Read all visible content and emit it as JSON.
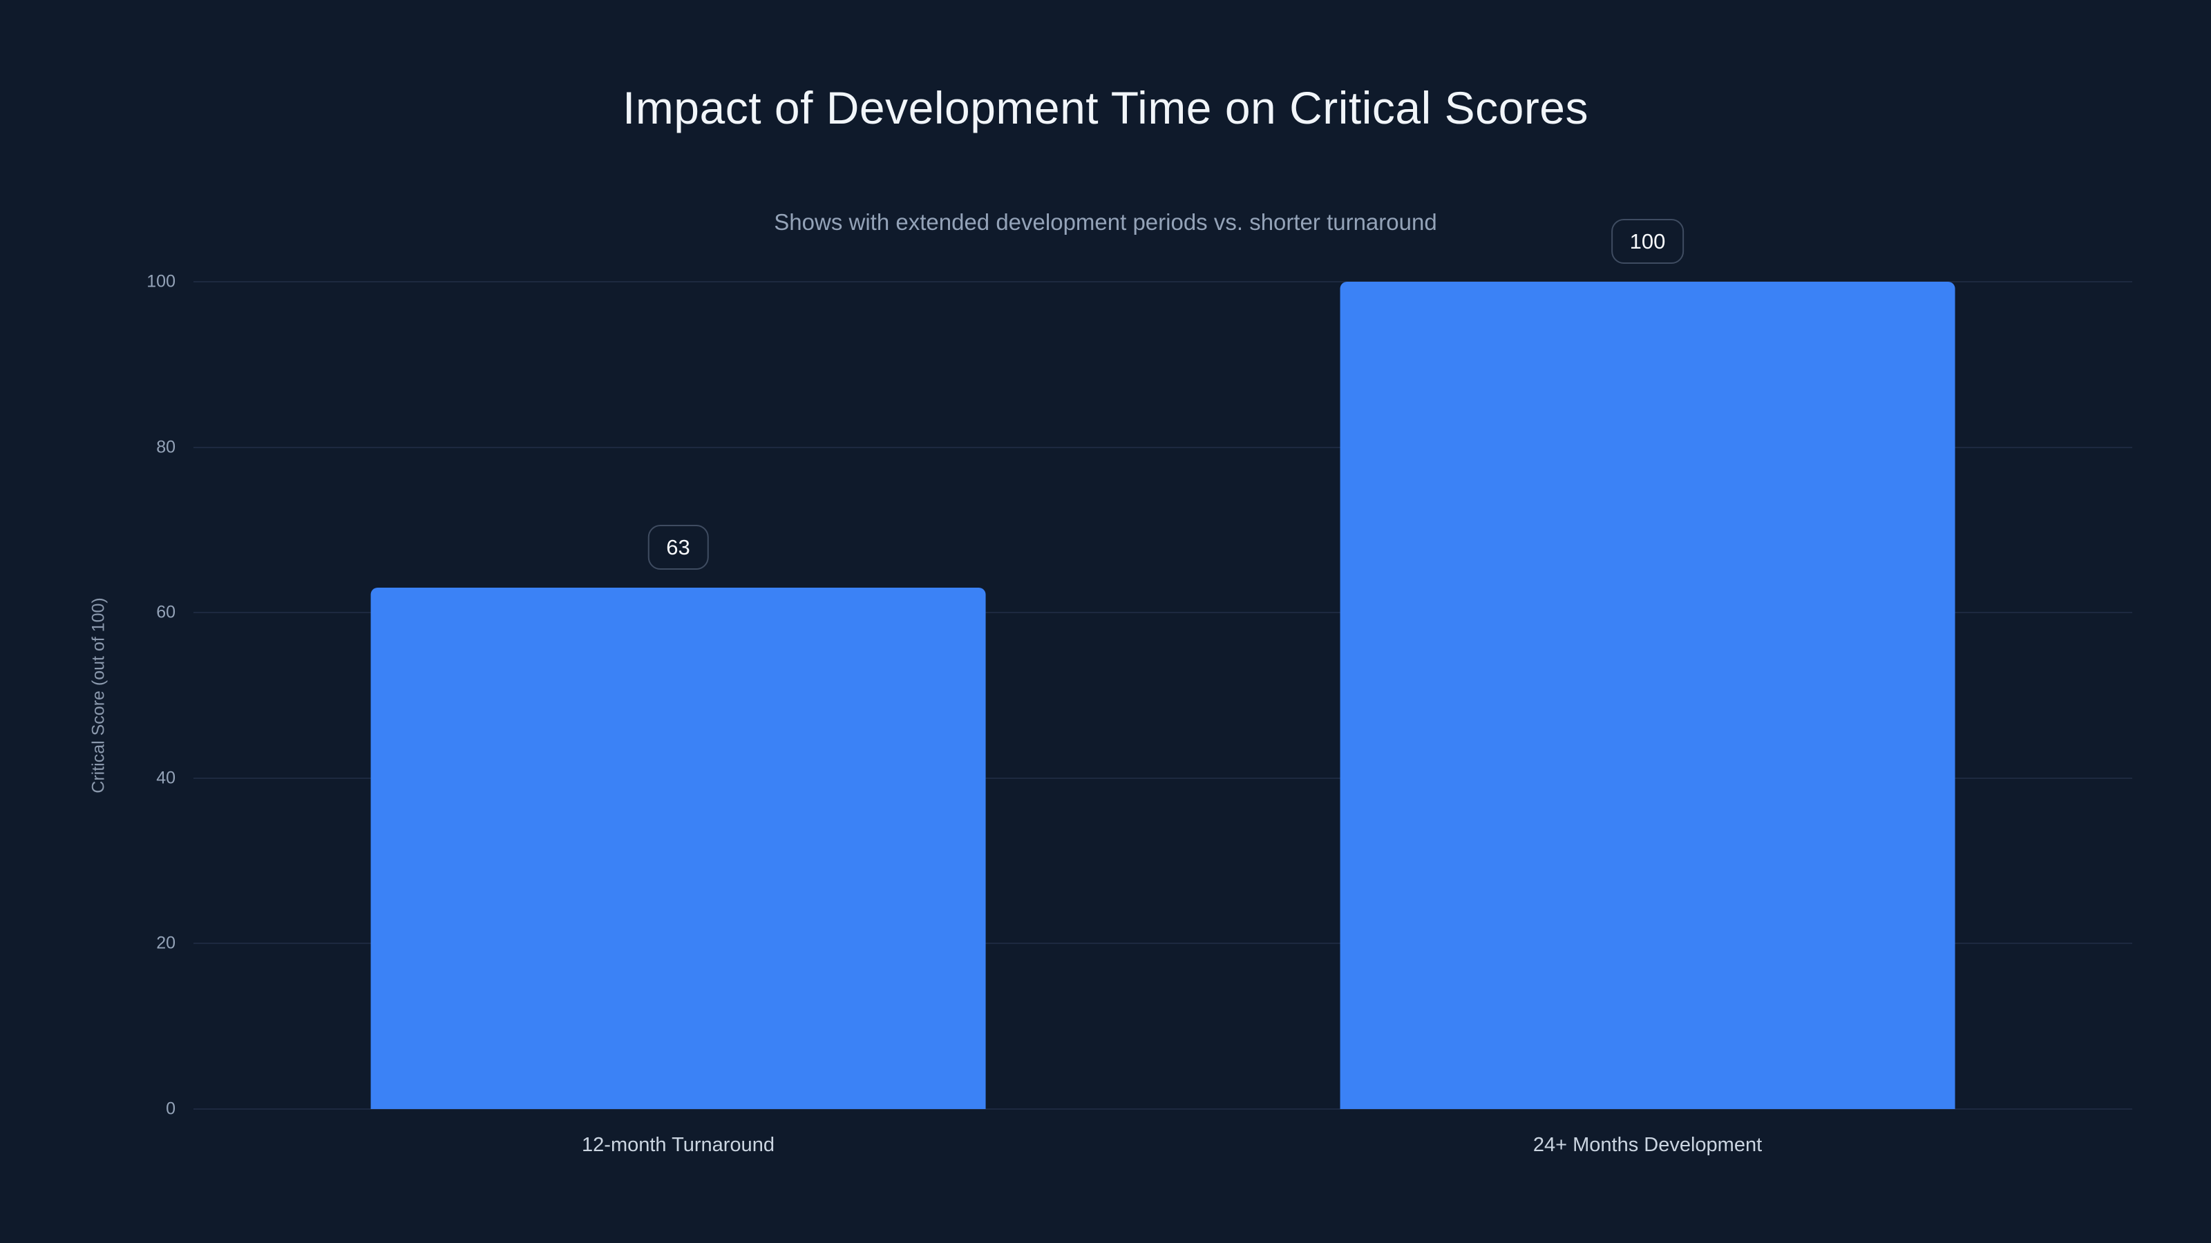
{
  "colors": {
    "background": "#0f1a2b",
    "bar": "#3b82f6",
    "grid": "#1d2940",
    "tick_text": "#94a3b8",
    "title_text": "#f1f5f9",
    "subtitle_text": "#94a3b8",
    "chip_border": "#3f4c61",
    "chip_text": "#f8fafc"
  },
  "chart_data": {
    "type": "bar",
    "title": "Impact of Development Time on Critical Scores",
    "subtitle": "Shows with extended development periods vs. shorter turnaround",
    "ylabel": "Critical Score (out of 100)",
    "xlabel": "",
    "categories": [
      "12-month Turnaround",
      "24+ Months Development"
    ],
    "values": [
      63,
      100
    ],
    "ylim": [
      0,
      100
    ],
    "yticks": [
      0,
      20,
      40,
      60,
      80,
      100
    ],
    "grid": true,
    "legend": false,
    "value_labels_visible": true
  }
}
